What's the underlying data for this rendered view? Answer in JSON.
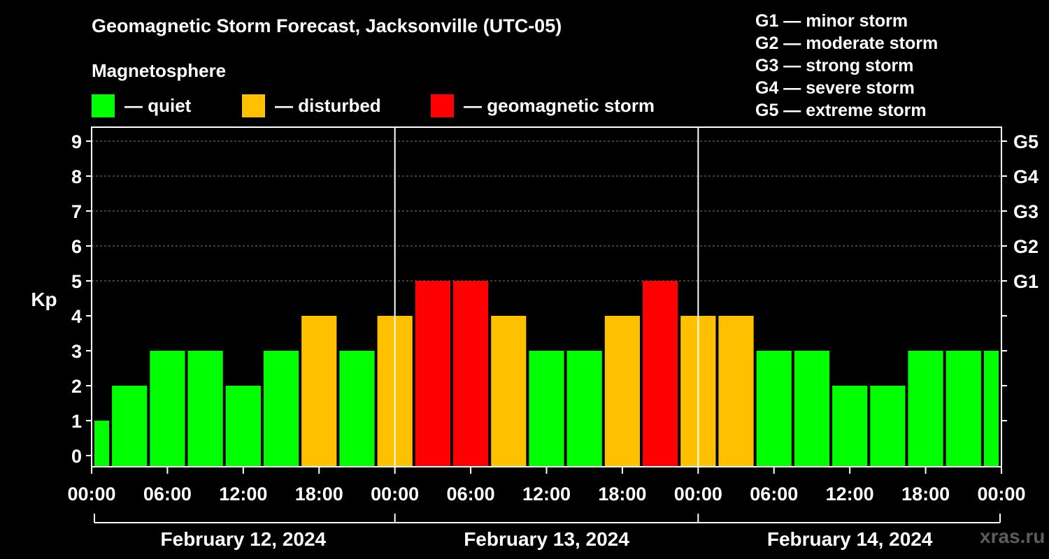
{
  "chart_data": {
    "type": "bar",
    "title": "Geomagnetic Storm Forecast, Jacksonville (UTC-05)",
    "legend_title": "Magnetosphere",
    "legend": [
      {
        "label": "— quiet",
        "color": "#00ff00"
      },
      {
        "label": "— disturbed",
        "color": "#ffc000"
      },
      {
        "label": "— geomagnetic storm",
        "color": "#ff0000"
      }
    ],
    "storm_scale": [
      "G1 — minor storm",
      "G2 — moderate storm",
      "G3 — strong storm",
      "G4 — severe storm",
      "G5 — extreme storm"
    ],
    "ylabel": "Kp",
    "ylim": [
      0,
      9
    ],
    "y_ticks": [
      "0",
      "1",
      "2",
      "3",
      "4",
      "5",
      "6",
      "7",
      "8",
      "9"
    ],
    "right_ticks": [
      {
        "kp": 5,
        "label": "G1"
      },
      {
        "kp": 6,
        "label": "G2"
      },
      {
        "kp": 7,
        "label": "G3"
      },
      {
        "kp": 8,
        "label": "G4"
      },
      {
        "kp": 9,
        "label": "G5"
      }
    ],
    "x_ticks": [
      "00:00",
      "06:00",
      "12:00",
      "18:00",
      "00:00",
      "06:00",
      "12:00",
      "18:00",
      "00:00",
      "06:00",
      "12:00",
      "18:00",
      "00:00"
    ],
    "days": [
      "February 12, 2024",
      "February 13, 2024",
      "February 14, 2024"
    ],
    "hours_total": 72,
    "bars": [
      {
        "start": 0,
        "end": 1.5,
        "kp": 1,
        "level": "quiet"
      },
      {
        "start": 1.5,
        "end": 4.5,
        "kp": 2,
        "level": "quiet"
      },
      {
        "start": 4.5,
        "end": 7.5,
        "kp": 3,
        "level": "quiet"
      },
      {
        "start": 7.5,
        "end": 10.5,
        "kp": 3,
        "level": "quiet"
      },
      {
        "start": 10.5,
        "end": 13.5,
        "kp": 2,
        "level": "quiet"
      },
      {
        "start": 13.5,
        "end": 16.5,
        "kp": 3,
        "level": "quiet"
      },
      {
        "start": 16.5,
        "end": 19.5,
        "kp": 4,
        "level": "disturbed"
      },
      {
        "start": 19.5,
        "end": 22.5,
        "kp": 3,
        "level": "quiet"
      },
      {
        "start": 22.5,
        "end": 25.5,
        "kp": 4,
        "level": "disturbed"
      },
      {
        "start": 25.5,
        "end": 28.5,
        "kp": 5,
        "level": "storm"
      },
      {
        "start": 28.5,
        "end": 31.5,
        "kp": 5,
        "level": "storm"
      },
      {
        "start": 31.5,
        "end": 34.5,
        "kp": 4,
        "level": "disturbed"
      },
      {
        "start": 34.5,
        "end": 37.5,
        "kp": 3,
        "level": "quiet"
      },
      {
        "start": 37.5,
        "end": 40.5,
        "kp": 3,
        "level": "quiet"
      },
      {
        "start": 40.5,
        "end": 43.5,
        "kp": 4,
        "level": "disturbed"
      },
      {
        "start": 43.5,
        "end": 46.5,
        "kp": 5,
        "level": "storm"
      },
      {
        "start": 46.5,
        "end": 49.5,
        "kp": 4,
        "level": "disturbed"
      },
      {
        "start": 49.5,
        "end": 52.5,
        "kp": 4,
        "level": "disturbed"
      },
      {
        "start": 52.5,
        "end": 55.5,
        "kp": 3,
        "level": "quiet"
      },
      {
        "start": 55.5,
        "end": 58.5,
        "kp": 3,
        "level": "quiet"
      },
      {
        "start": 58.5,
        "end": 61.5,
        "kp": 2,
        "level": "quiet"
      },
      {
        "start": 61.5,
        "end": 64.5,
        "kp": 2,
        "level": "quiet"
      },
      {
        "start": 64.5,
        "end": 67.5,
        "kp": 3,
        "level": "quiet"
      },
      {
        "start": 67.5,
        "end": 70.5,
        "kp": 3,
        "level": "quiet"
      },
      {
        "start": 70.5,
        "end": 72,
        "kp": 3,
        "level": "quiet"
      }
    ],
    "colors": {
      "quiet": "#00ff00",
      "disturbed": "#ffc000",
      "storm": "#ff0000",
      "grid": "#808080",
      "axis": "#ffffff",
      "background": "#000000"
    }
  },
  "watermark": "xras.ru"
}
